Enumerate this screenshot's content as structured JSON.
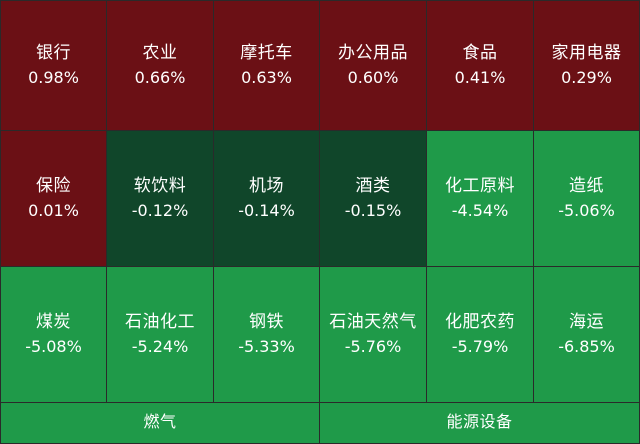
{
  "rows": [
    [
      {
        "name": "银行",
        "pct": "0.98%",
        "color": "#6b1015"
      },
      {
        "name": "农业",
        "pct": "0.66%",
        "color": "#6b1015"
      },
      {
        "name": "摩托车",
        "pct": "0.63%",
        "color": "#6b1015"
      },
      {
        "name": "办公用品",
        "pct": "0.60%",
        "color": "#6b1015"
      },
      {
        "name": "食品",
        "pct": "0.41%",
        "color": "#6b1015"
      },
      {
        "name": "家用电器",
        "pct": "0.29%",
        "color": "#6b1015"
      }
    ],
    [
      {
        "name": "保险",
        "pct": "0.01%",
        "color": "#6b1015"
      },
      {
        "name": "软饮料",
        "pct": "-0.12%",
        "color": "#10462a"
      },
      {
        "name": "机场",
        "pct": "-0.14%",
        "color": "#10462a"
      },
      {
        "name": "酒类",
        "pct": "-0.15%",
        "color": "#10462a"
      },
      {
        "name": "化工原料",
        "pct": "-4.54%",
        "color": "#1f9a49"
      },
      {
        "name": "造纸",
        "pct": "-5.06%",
        "color": "#1f9a49"
      }
    ],
    [
      {
        "name": "煤炭",
        "pct": "-5.08%",
        "color": "#1f9a49"
      },
      {
        "name": "石油化工",
        "pct": "-5.24%",
        "color": "#1f9a49"
      },
      {
        "name": "钢铁",
        "pct": "-5.33%",
        "color": "#1f9a49"
      },
      {
        "name": "石油天然气",
        "pct": "-5.76%",
        "color": "#1f9a49"
      },
      {
        "name": "化肥农药",
        "pct": "-5.79%",
        "color": "#1f9a49"
      },
      {
        "name": "海运",
        "pct": "-6.85%",
        "color": "#1f9a49"
      }
    ]
  ],
  "bottom": [
    {
      "name": "燃气",
      "color": "#1f9a49"
    },
    {
      "name": "能源设备",
      "color": "#1f9a49"
    }
  ]
}
